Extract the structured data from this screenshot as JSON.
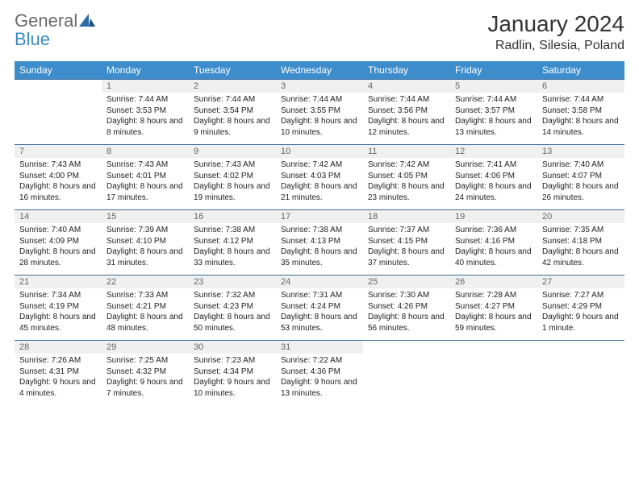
{
  "brand": {
    "part1": "General",
    "part2": "Blue"
  },
  "title": "January 2024",
  "location": "Radlin, Silesia, Poland",
  "colors": {
    "header_bg": "#3d8ccc",
    "header_text": "#ffffff",
    "daynum_bg": "#f0f0f0",
    "daynum_text": "#666666",
    "row_border": "#3d6d99",
    "body_text": "#222222",
    "logo_gray": "#6a6a6a",
    "logo_blue": "#3a8cc8"
  },
  "weekdays": [
    "Sunday",
    "Monday",
    "Tuesday",
    "Wednesday",
    "Thursday",
    "Friday",
    "Saturday"
  ],
  "weeks": [
    {
      "nums": [
        "",
        "1",
        "2",
        "3",
        "4",
        "5",
        "6"
      ],
      "cells": [
        null,
        {
          "sunrise": "Sunrise: 7:44 AM",
          "sunset": "Sunset: 3:53 PM",
          "daylight": "Daylight: 8 hours and 8 minutes."
        },
        {
          "sunrise": "Sunrise: 7:44 AM",
          "sunset": "Sunset: 3:54 PM",
          "daylight": "Daylight: 8 hours and 9 minutes."
        },
        {
          "sunrise": "Sunrise: 7:44 AM",
          "sunset": "Sunset: 3:55 PM",
          "daylight": "Daylight: 8 hours and 10 minutes."
        },
        {
          "sunrise": "Sunrise: 7:44 AM",
          "sunset": "Sunset: 3:56 PM",
          "daylight": "Daylight: 8 hours and 12 minutes."
        },
        {
          "sunrise": "Sunrise: 7:44 AM",
          "sunset": "Sunset: 3:57 PM",
          "daylight": "Daylight: 8 hours and 13 minutes."
        },
        {
          "sunrise": "Sunrise: 7:44 AM",
          "sunset": "Sunset: 3:58 PM",
          "daylight": "Daylight: 8 hours and 14 minutes."
        }
      ]
    },
    {
      "nums": [
        "7",
        "8",
        "9",
        "10",
        "11",
        "12",
        "13"
      ],
      "cells": [
        {
          "sunrise": "Sunrise: 7:43 AM",
          "sunset": "Sunset: 4:00 PM",
          "daylight": "Daylight: 8 hours and 16 minutes."
        },
        {
          "sunrise": "Sunrise: 7:43 AM",
          "sunset": "Sunset: 4:01 PM",
          "daylight": "Daylight: 8 hours and 17 minutes."
        },
        {
          "sunrise": "Sunrise: 7:43 AM",
          "sunset": "Sunset: 4:02 PM",
          "daylight": "Daylight: 8 hours and 19 minutes."
        },
        {
          "sunrise": "Sunrise: 7:42 AM",
          "sunset": "Sunset: 4:03 PM",
          "daylight": "Daylight: 8 hours and 21 minutes."
        },
        {
          "sunrise": "Sunrise: 7:42 AM",
          "sunset": "Sunset: 4:05 PM",
          "daylight": "Daylight: 8 hours and 23 minutes."
        },
        {
          "sunrise": "Sunrise: 7:41 AM",
          "sunset": "Sunset: 4:06 PM",
          "daylight": "Daylight: 8 hours and 24 minutes."
        },
        {
          "sunrise": "Sunrise: 7:40 AM",
          "sunset": "Sunset: 4:07 PM",
          "daylight": "Daylight: 8 hours and 26 minutes."
        }
      ]
    },
    {
      "nums": [
        "14",
        "15",
        "16",
        "17",
        "18",
        "19",
        "20"
      ],
      "cells": [
        {
          "sunrise": "Sunrise: 7:40 AM",
          "sunset": "Sunset: 4:09 PM",
          "daylight": "Daylight: 8 hours and 28 minutes."
        },
        {
          "sunrise": "Sunrise: 7:39 AM",
          "sunset": "Sunset: 4:10 PM",
          "daylight": "Daylight: 8 hours and 31 minutes."
        },
        {
          "sunrise": "Sunrise: 7:38 AM",
          "sunset": "Sunset: 4:12 PM",
          "daylight": "Daylight: 8 hours and 33 minutes."
        },
        {
          "sunrise": "Sunrise: 7:38 AM",
          "sunset": "Sunset: 4:13 PM",
          "daylight": "Daylight: 8 hours and 35 minutes."
        },
        {
          "sunrise": "Sunrise: 7:37 AM",
          "sunset": "Sunset: 4:15 PM",
          "daylight": "Daylight: 8 hours and 37 minutes."
        },
        {
          "sunrise": "Sunrise: 7:36 AM",
          "sunset": "Sunset: 4:16 PM",
          "daylight": "Daylight: 8 hours and 40 minutes."
        },
        {
          "sunrise": "Sunrise: 7:35 AM",
          "sunset": "Sunset: 4:18 PM",
          "daylight": "Daylight: 8 hours and 42 minutes."
        }
      ]
    },
    {
      "nums": [
        "21",
        "22",
        "23",
        "24",
        "25",
        "26",
        "27"
      ],
      "cells": [
        {
          "sunrise": "Sunrise: 7:34 AM",
          "sunset": "Sunset: 4:19 PM",
          "daylight": "Daylight: 8 hours and 45 minutes."
        },
        {
          "sunrise": "Sunrise: 7:33 AM",
          "sunset": "Sunset: 4:21 PM",
          "daylight": "Daylight: 8 hours and 48 minutes."
        },
        {
          "sunrise": "Sunrise: 7:32 AM",
          "sunset": "Sunset: 4:23 PM",
          "daylight": "Daylight: 8 hours and 50 minutes."
        },
        {
          "sunrise": "Sunrise: 7:31 AM",
          "sunset": "Sunset: 4:24 PM",
          "daylight": "Daylight: 8 hours and 53 minutes."
        },
        {
          "sunrise": "Sunrise: 7:30 AM",
          "sunset": "Sunset: 4:26 PM",
          "daylight": "Daylight: 8 hours and 56 minutes."
        },
        {
          "sunrise": "Sunrise: 7:28 AM",
          "sunset": "Sunset: 4:27 PM",
          "daylight": "Daylight: 8 hours and 59 minutes."
        },
        {
          "sunrise": "Sunrise: 7:27 AM",
          "sunset": "Sunset: 4:29 PM",
          "daylight": "Daylight: 9 hours and 1 minute."
        }
      ]
    },
    {
      "nums": [
        "28",
        "29",
        "30",
        "31",
        "",
        "",
        ""
      ],
      "cells": [
        {
          "sunrise": "Sunrise: 7:26 AM",
          "sunset": "Sunset: 4:31 PM",
          "daylight": "Daylight: 9 hours and 4 minutes."
        },
        {
          "sunrise": "Sunrise: 7:25 AM",
          "sunset": "Sunset: 4:32 PM",
          "daylight": "Daylight: 9 hours and 7 minutes."
        },
        {
          "sunrise": "Sunrise: 7:23 AM",
          "sunset": "Sunset: 4:34 PM",
          "daylight": "Daylight: 9 hours and 10 minutes."
        },
        {
          "sunrise": "Sunrise: 7:22 AM",
          "sunset": "Sunset: 4:36 PM",
          "daylight": "Daylight: 9 hours and 13 minutes."
        },
        null,
        null,
        null
      ]
    }
  ]
}
